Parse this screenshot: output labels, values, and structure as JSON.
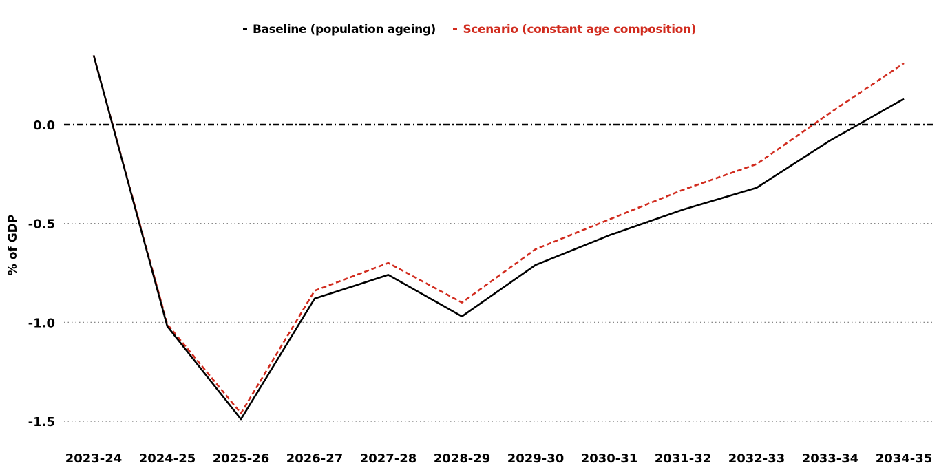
{
  "chart_data": {
    "type": "line",
    "categories": [
      "2023-24",
      "2024-25",
      "2025-26",
      "2026-27",
      "2027-28",
      "2028-29",
      "2029-30",
      "2030-31",
      "2031-32",
      "2032-33",
      "2033-34",
      "2034-35"
    ],
    "series": [
      {
        "name": "Baseline (population ageing)",
        "color": "#000000",
        "style": "solid",
        "values": [
          0.35,
          -1.02,
          -1.49,
          -0.88,
          -0.76,
          -0.97,
          -0.71,
          -0.56,
          -0.43,
          -0.32,
          -0.08,
          0.13
        ]
      },
      {
        "name": "Scenario (constant age composition)",
        "color": "#d12b1e",
        "style": "dashed",
        "values": [
          0.35,
          -1.01,
          -1.46,
          -0.84,
          -0.7,
          -0.9,
          -0.63,
          -0.48,
          -0.33,
          -0.2,
          0.06,
          0.31
        ]
      }
    ],
    "ylabel": "% of GDP",
    "xlabel": "",
    "ylim": [
      -1.65,
      0.42
    ],
    "yticks": [
      -1.5,
      -1.0,
      -0.5,
      0.0
    ],
    "ytick_labels": [
      "-1.5",
      "-1.0",
      "-0.5",
      "0.0"
    ],
    "zero_line": true,
    "grid": "horizontal dotted",
    "legend_position": "top-center"
  }
}
